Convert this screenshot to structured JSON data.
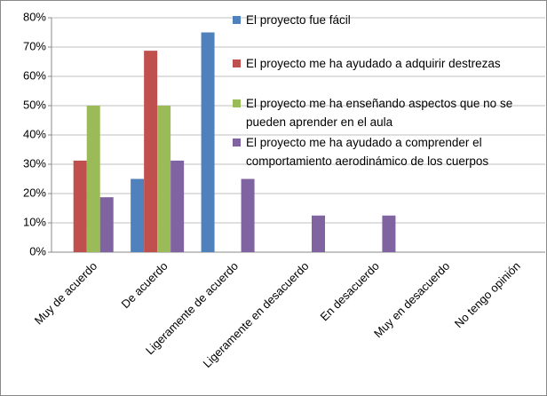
{
  "chart_data": {
    "type": "bar",
    "categories": [
      "Muy de acuerdo",
      "De acuerdo",
      "Ligeramente de acuerdo",
      "Ligeramente en desacuerdo",
      "En desacuerdo",
      "Muy en desacuerdo",
      "No tengo opinión"
    ],
    "series": [
      {
        "name": "El proyecto fue fácil",
        "color": "#4f81bd",
        "values": [
          0,
          25,
          75,
          0,
          0,
          0,
          0
        ]
      },
      {
        "name": "El proyecto me ha ayudado a adquirir destrezas",
        "color": "#c0504d",
        "values": [
          31.25,
          68.75,
          0,
          0,
          0,
          0,
          0
        ]
      },
      {
        "name": "El proyecto me ha enseñando aspectos que no se pueden aprender en el aula",
        "color": "#9bbb59",
        "values": [
          50,
          50,
          0,
          0,
          0,
          0,
          0
        ]
      },
      {
        "name": "El proyecto me ha ayudado a comprender el comportamiento aerodinámico de los cuerpos",
        "color": "#8064a2",
        "values": [
          18.75,
          31.25,
          25,
          12.5,
          12.5,
          0,
          0
        ]
      }
    ],
    "ylim": [
      0,
      80
    ],
    "yticks": [
      {
        "value": 0,
        "label": "0%"
      },
      {
        "value": 10,
        "label": "10%"
      },
      {
        "value": 20,
        "label": "20%"
      },
      {
        "value": 30,
        "label": "30%"
      },
      {
        "value": 40,
        "label": "40%"
      },
      {
        "value": 50,
        "label": "50%"
      },
      {
        "value": 60,
        "label": "60%"
      },
      {
        "value": 70,
        "label": "70%"
      },
      {
        "value": 80,
        "label": "80%"
      }
    ],
    "grid": true
  }
}
